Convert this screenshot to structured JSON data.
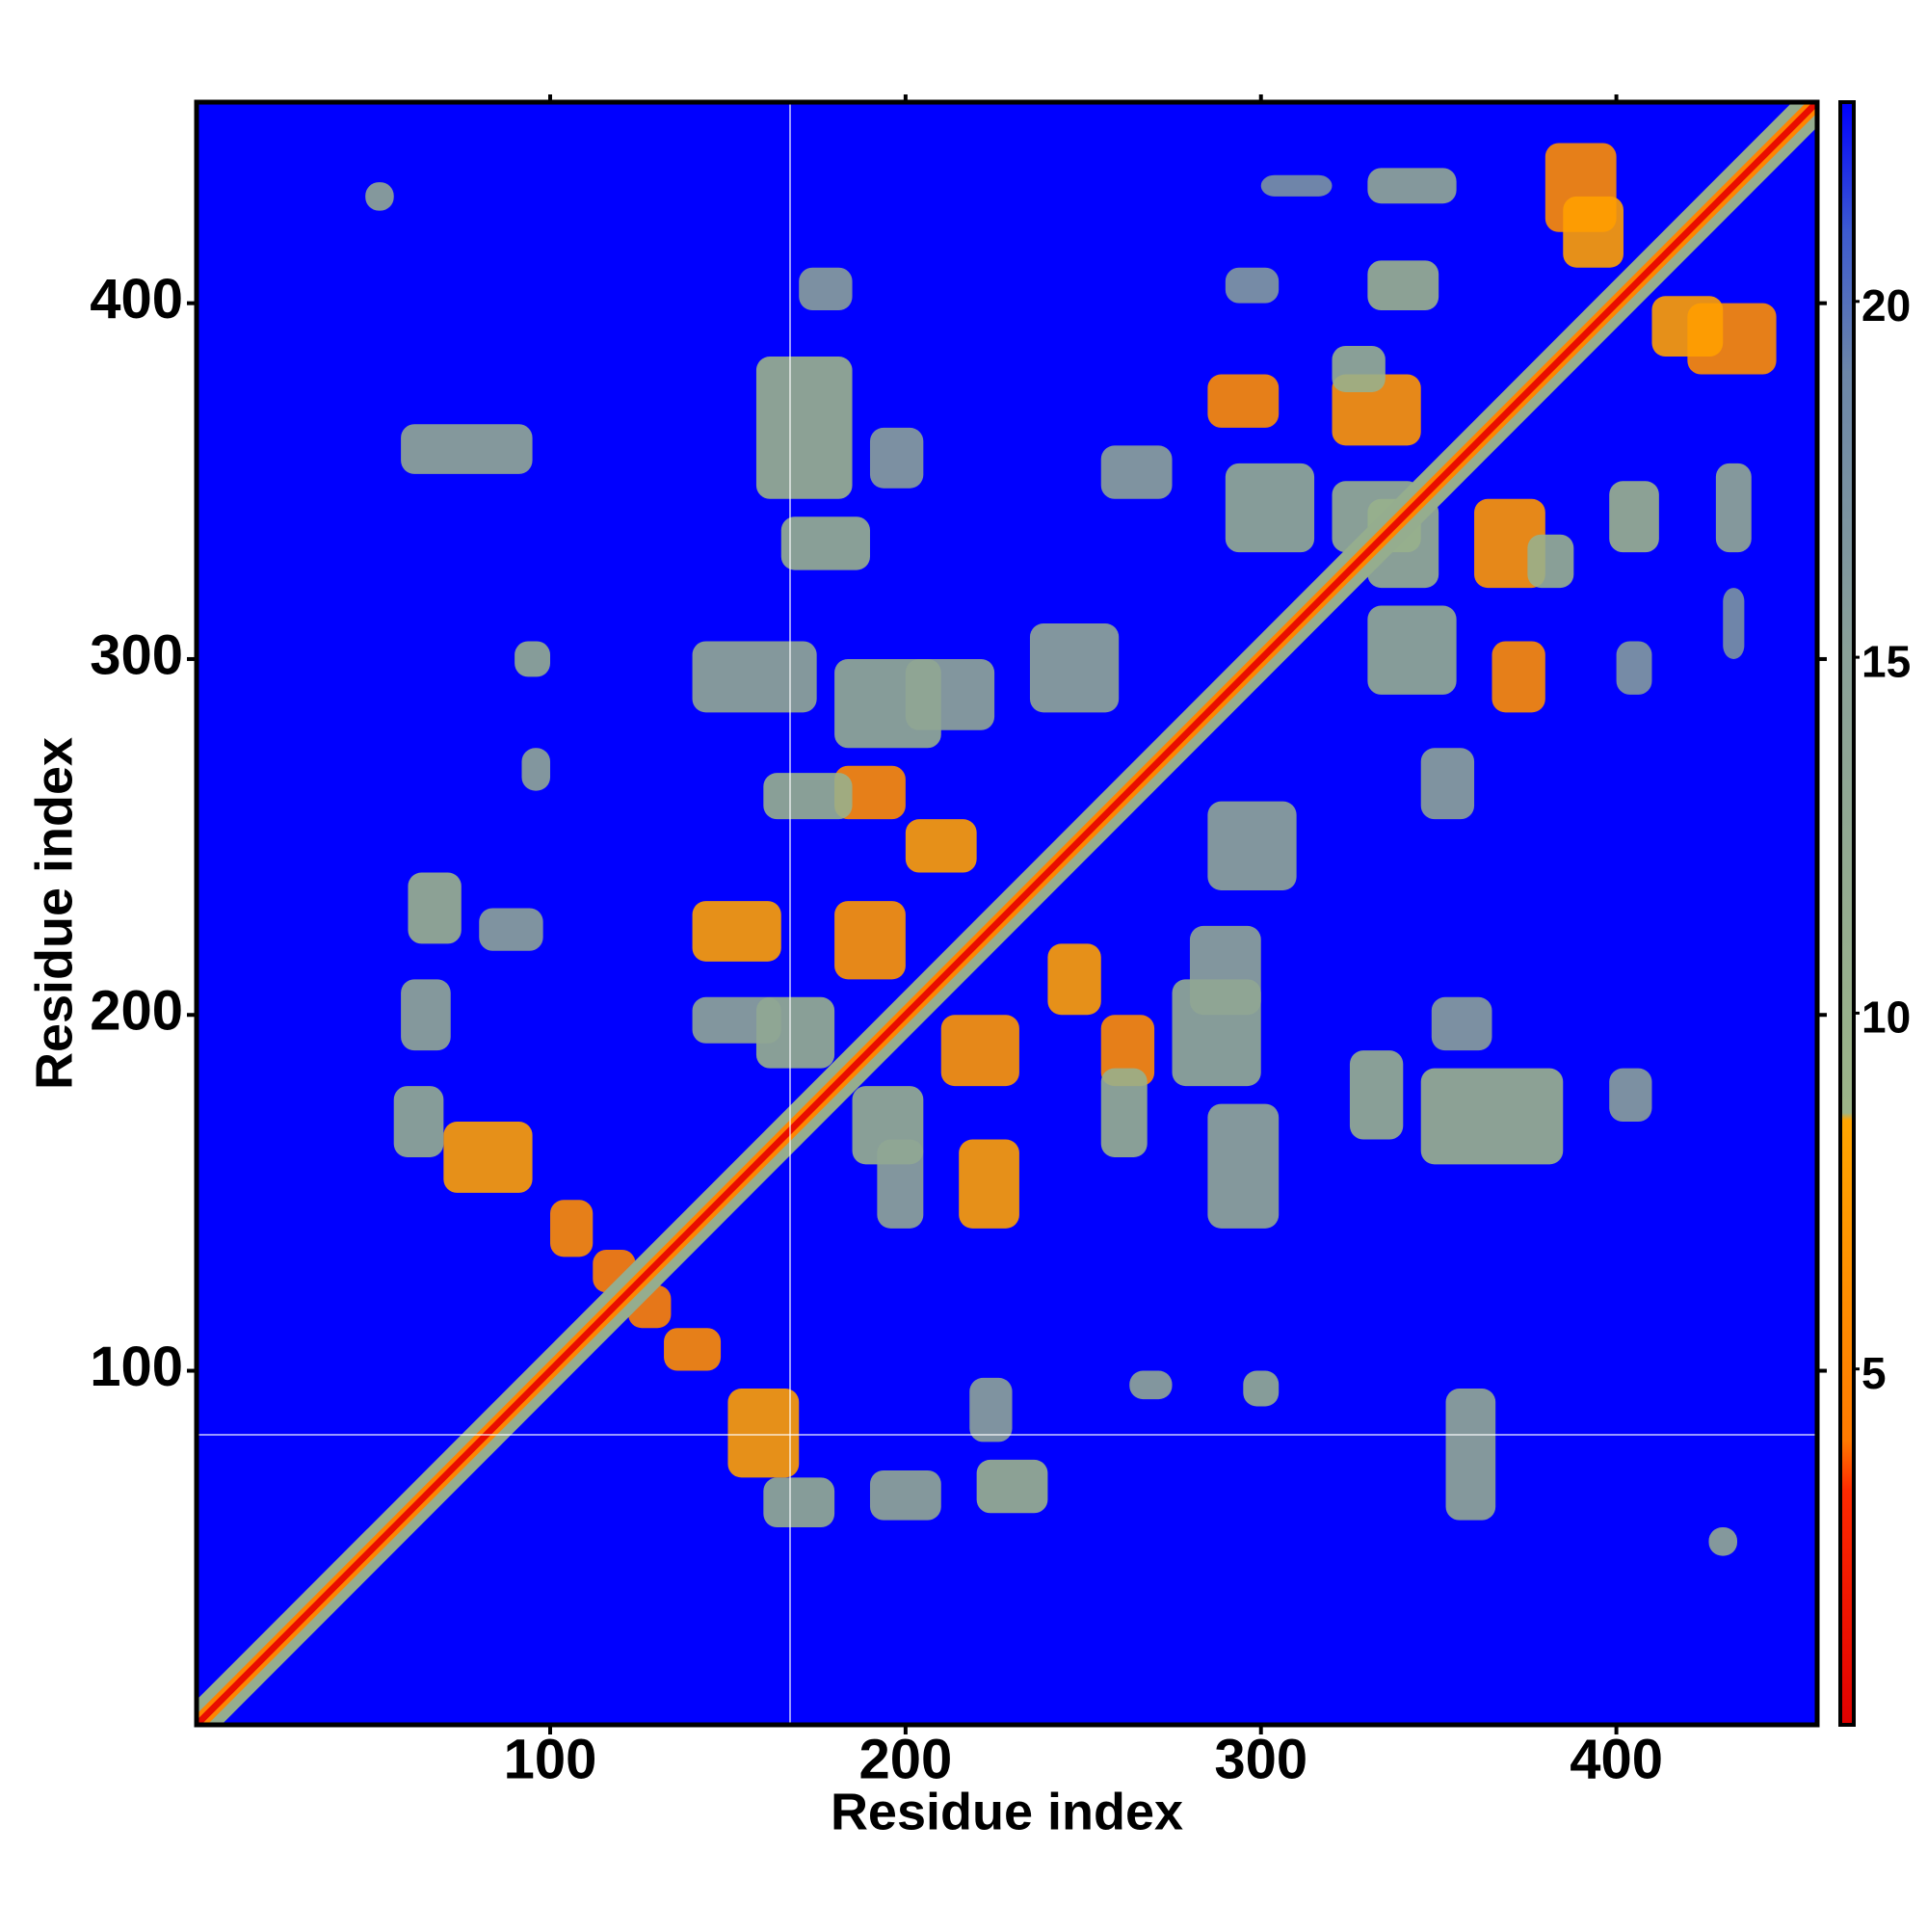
{
  "chart_data": {
    "type": "heatmap",
    "x_label": "Residue index",
    "y_label": "Residue index",
    "xlim": [
      0.5,
      456.5
    ],
    "ylim": [
      0.5,
      456.5
    ],
    "xticks": [
      100,
      200,
      300,
      400
    ],
    "yticks": [
      100,
      200,
      300,
      400
    ],
    "clim": [
      0,
      22.8
    ],
    "cticks": [
      5,
      10,
      15,
      20
    ],
    "colorscale": [
      [
        0,
        "#e00000"
      ],
      [
        3.3,
        "#ff2a00"
      ],
      [
        4,
        "#ff7a00"
      ],
      [
        8.5,
        "#ffa500"
      ],
      [
        8.6,
        "#9cb488"
      ],
      [
        15,
        "#8aa098"
      ],
      [
        19,
        "#6c86a8"
      ],
      [
        21,
        "#3c5ad0"
      ],
      [
        22.8,
        "#0000ff"
      ]
    ],
    "background_value": 22.8,
    "symmetric": true,
    "crosshair": {
      "x": 167.5,
      "y": 82
    },
    "diagonal_bands": [
      {
        "offset": 7,
        "value": 11
      },
      {
        "offset": 3,
        "value": 5
      },
      {
        "offset": 1.3,
        "value": 1
      }
    ],
    "regions": [
      {
        "x": [
          48,
          56
        ],
        "y": [
          426,
          434
        ],
        "value": 12
      },
      {
        "x": [
          58,
          95
        ],
        "y": [
          352,
          366
        ],
        "value": 12
      },
      {
        "x": [
          90,
          100
        ],
        "y": [
          295,
          305
        ],
        "value": 11
      },
      {
        "x": [
          92,
          100
        ],
        "y": [
          263,
          275
        ],
        "value": 13
      },
      {
        "x": [
          60,
          75
        ],
        "y": [
          220,
          240
        ],
        "value": 9
      },
      {
        "x": [
          80,
          98
        ],
        "y": [
          218,
          230
        ],
        "value": 14
      },
      {
        "x": [
          58,
          72
        ],
        "y": [
          190,
          210
        ],
        "value": 12
      },
      {
        "x": [
          56,
          70
        ],
        "y": [
          160,
          180
        ],
        "value": 11
      },
      {
        "x": [
          70,
          95
        ],
        "y": [
          150,
          170
        ],
        "value": 8
      },
      {
        "x": [
          100,
          112
        ],
        "y": [
          132,
          148
        ],
        "value": 6
      },
      {
        "x": [
          112,
          124
        ],
        "y": [
          122,
          134
        ],
        "value": 5
      },
      {
        "x": [
          158,
          185
        ],
        "y": [
          345,
          385
        ],
        "value": 9
      },
      {
        "x": [
          165,
          190
        ],
        "y": [
          325,
          340
        ],
        "value": 10
      },
      {
        "x": [
          190,
          205
        ],
        "y": [
          348,
          365
        ],
        "value": 15
      },
      {
        "x": [
          170,
          185
        ],
        "y": [
          398,
          410
        ],
        "value": 15
      },
      {
        "x": [
          140,
          175
        ],
        "y": [
          285,
          305
        ],
        "value": 12
      },
      {
        "x": [
          180,
          210
        ],
        "y": [
          275,
          300
        ],
        "value": 11
      },
      {
        "x": [
          200,
          225
        ],
        "y": [
          280,
          300
        ],
        "value": 13
      },
      {
        "x": [
          180,
          200
        ],
        "y": [
          255,
          270
        ],
        "value": 6
      },
      {
        "x": [
          160,
          185
        ],
        "y": [
          255,
          268
        ],
        "value": 10
      },
      {
        "x": [
          200,
          220
        ],
        "y": [
          240,
          255
        ],
        "value": 8
      },
      {
        "x": [
          140,
          165
        ],
        "y": [
          215,
          232
        ],
        "value": 8
      },
      {
        "x": [
          158,
          180
        ],
        "y": [
          185,
          205
        ],
        "value": 10
      },
      {
        "x": [
          140,
          165
        ],
        "y": [
          192,
          205
        ],
        "value": 13
      },
      {
        "x": [
          180,
          200
        ],
        "y": [
          210,
          232
        ],
        "value": 7
      },
      {
        "x": [
          235,
          260
        ],
        "y": [
          285,
          310
        ],
        "value": 13
      },
      {
        "x": [
          255,
          275
        ],
        "y": [
          345,
          360
        ],
        "value": 14
      },
      {
        "x": [
          285,
          305
        ],
        "y": [
          365,
          380
        ],
        "value": 6
      },
      {
        "x": [
          290,
          315
        ],
        "y": [
          330,
          355
        ],
        "value": 11
      },
      {
        "x": [
          290,
          305
        ],
        "y": [
          400,
          410
        ],
        "value": 16
      },
      {
        "x": [
          320,
          345
        ],
        "y": [
          360,
          380
        ],
        "value": 7
      },
      {
        "x": [
          330,
          350
        ],
        "y": [
          398,
          412
        ],
        "value": 9
      },
      {
        "x": [
          330,
          355
        ],
        "y": [
          428,
          438
        ],
        "value": 12
      },
      {
        "x": [
          300,
          320
        ],
        "y": [
          430,
          436
        ],
        "value": 17
      },
      {
        "x": [
          330,
          350
        ],
        "y": [
          320,
          345
        ],
        "value": 10
      },
      {
        "x": [
          380,
          400
        ],
        "y": [
          420,
          445
        ],
        "value": 6
      },
      {
        "x": [
          385,
          402
        ],
        "y": [
          410,
          430
        ],
        "value": 8
      },
      {
        "x": [
          320,
          335
        ],
        "y": [
          375,
          388
        ],
        "value": 10
      }
    ]
  }
}
